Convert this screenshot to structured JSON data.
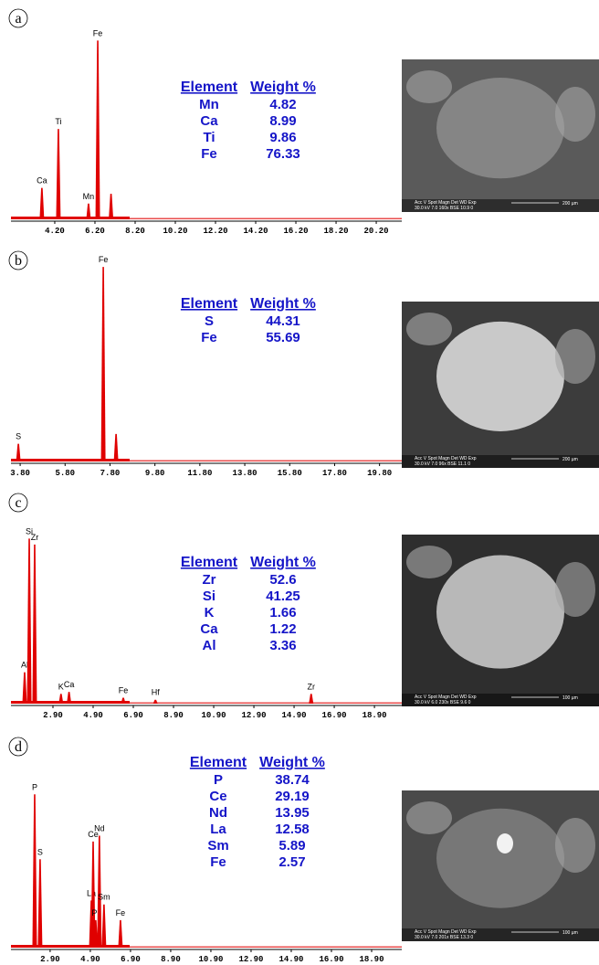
{
  "chart_data": [
    {
      "type": "spectrum",
      "panel_label": "a",
      "xlim": [
        2.02,
        21.47
      ],
      "ylim": [
        0,
        100
      ],
      "xticks": [
        {
          "value": 4.2,
          "label": "4.20"
        },
        {
          "value": 6.2,
          "label": "6.20"
        },
        {
          "value": 8.2,
          "label": "8.20"
        },
        {
          "value": 10.2,
          "label": "10.20"
        },
        {
          "value": 12.2,
          "label": "12.20"
        },
        {
          "value": 14.2,
          "label": "14.20"
        },
        {
          "value": 16.2,
          "label": "16.20"
        },
        {
          "value": 18.2,
          "label": "18.20"
        },
        {
          "value": 20.2,
          "label": "20.20"
        }
      ],
      "x": [
        3.56,
        4.38,
        5.88,
        6.34,
        7.0
      ],
      "values": [
        16,
        46,
        8,
        91,
        13
      ],
      "peak_labels": [
        "Ca",
        "Ti",
        "Mn",
        "Fe",
        null
      ],
      "color": "#e00000",
      "table": {
        "header": [
          "Element",
          "Weight %"
        ],
        "rows": [
          [
            "Mn",
            4.82
          ],
          [
            "Ca",
            8.99
          ],
          [
            "Ti",
            9.86
          ],
          [
            "Fe",
            76.33
          ]
        ]
      },
      "sem": {
        "info": [
          "Acc V  Spot Magn   Det  WD  Exp",
          "30.0 kV 7.0  160x   BSE 10.9  0"
        ],
        "scale": "200 µm"
      }
    },
    {
      "type": "spectrum",
      "panel_label": "b",
      "xlim": [
        3.39,
        20.79
      ],
      "ylim": [
        0,
        100
      ],
      "xticks": [
        {
          "value": 3.8,
          "label": "3.80"
        },
        {
          "value": 5.8,
          "label": "5.80"
        },
        {
          "value": 7.8,
          "label": "7.80"
        },
        {
          "value": 9.8,
          "label": "9.80"
        },
        {
          "value": 11.8,
          "label": "11.80"
        },
        {
          "value": 13.8,
          "label": "13.80"
        },
        {
          "value": 15.8,
          "label": "15.80"
        },
        {
          "value": 17.8,
          "label": "17.80"
        },
        {
          "value": 19.8,
          "label": "19.80"
        }
      ],
      "x": [
        3.72,
        7.5,
        8.07
      ],
      "values": [
        9,
        99,
        14
      ],
      "peak_labels": [
        "S",
        "Fe",
        null
      ],
      "color": "#e00000",
      "table": {
        "header": [
          "Element",
          "Weight %"
        ],
        "rows": [
          [
            "S",
            44.31
          ],
          [
            "Fe",
            55.69
          ]
        ]
      },
      "sem": {
        "info": [
          "Acc V  Spot Magn   Det  WD  Exp",
          "30.0 kV 7.0  96x    BSE 11.1  0"
        ],
        "scale": "200 µm"
      }
    },
    {
      "type": "spectrum",
      "panel_label": "c",
      "xlim": [
        0.81,
        20.26
      ],
      "ylim": [
        0,
        100
      ],
      "xticks": [
        {
          "value": 2.9,
          "label": "2.90"
        },
        {
          "value": 4.9,
          "label": "4.90"
        },
        {
          "value": 6.9,
          "label": "6.90"
        },
        {
          "value": 8.9,
          "label": "8.90"
        },
        {
          "value": 10.9,
          "label": "10.90"
        },
        {
          "value": 12.9,
          "label": "12.90"
        },
        {
          "value": 14.9,
          "label": "14.90"
        },
        {
          "value": 16.9,
          "label": "16.90"
        },
        {
          "value": 18.9,
          "label": "18.90"
        }
      ],
      "x": [
        1.49,
        1.72,
        1.99,
        3.3,
        3.7,
        6.4,
        8.0,
        15.75
      ],
      "values": [
        16,
        84,
        81,
        5,
        6,
        3,
        2,
        5
      ],
      "peak_labels": [
        "Al",
        "Si",
        "Zr",
        "K",
        "Ca",
        "Fe",
        "Hf",
        "Zr"
      ],
      "color": "#e00000",
      "table": {
        "header": [
          "Element",
          "Weight %"
        ],
        "rows": [
          [
            "Zr",
            52.6
          ],
          [
            "Si",
            41.25
          ],
          [
            "K",
            1.66
          ],
          [
            "Ca",
            1.22
          ],
          [
            "Al",
            3.36
          ]
        ]
      },
      "sem": {
        "info": [
          "Acc V  Spot Magn   Det  WD  Exp",
          "30.0 kV 6.0  230x   BSE 9.6   0"
        ],
        "scale": "100 µm"
      }
    },
    {
      "type": "spectrum",
      "panel_label": "d",
      "xlim": [
        0.95,
        20.4
      ],
      "ylim": [
        0,
        100
      ],
      "xticks": [
        {
          "value": 2.9,
          "label": "2.90"
        },
        {
          "value": 4.9,
          "label": "4.90"
        },
        {
          "value": 6.9,
          "label": "6.90"
        },
        {
          "value": 8.9,
          "label": "8.90"
        },
        {
          "value": 10.9,
          "label": "10.90"
        },
        {
          "value": 12.9,
          "label": "12.90"
        },
        {
          "value": 14.9,
          "label": "14.90"
        },
        {
          "value": 16.9,
          "label": "16.90"
        },
        {
          "value": 18.9,
          "label": "18.90"
        }
      ],
      "x": [
        2.13,
        2.4,
        4.95,
        5.04,
        5.17,
        5.35,
        5.58,
        6.4
      ],
      "values": [
        78,
        45,
        24,
        54,
        14,
        57,
        22,
        14
      ],
      "peak_labels": [
        "P",
        "S",
        "La",
        "Ce",
        "Pr",
        "Nd",
        "Sm",
        "Fe"
      ],
      "color": "#e00000",
      "table": {
        "header": [
          "Element",
          "Weight %"
        ],
        "rows": [
          [
            "P",
            38.74
          ],
          [
            "Ce",
            29.19
          ],
          [
            "Nd",
            13.95
          ],
          [
            "La",
            12.58
          ],
          [
            "Sm",
            5.89
          ],
          [
            "Fe",
            2.57
          ]
        ]
      },
      "sem": {
        "info": [
          "Acc V  Spot Magn   Det  WD  Exp",
          "30.0 kV 7.0  201x   BSE 13.3  0"
        ],
        "scale": "100 µm"
      }
    }
  ]
}
